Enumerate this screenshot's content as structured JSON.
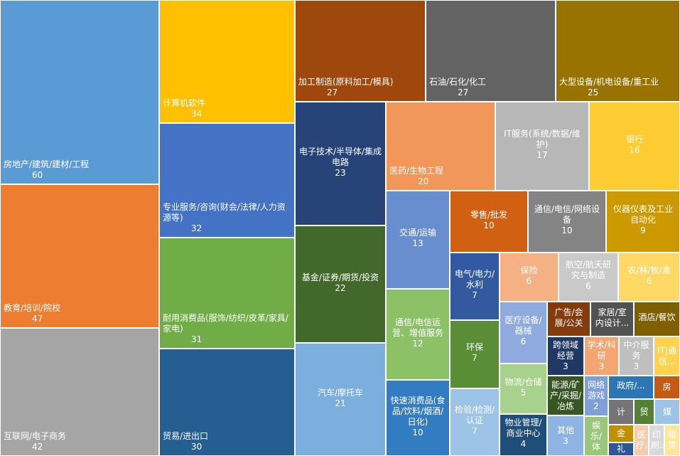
{
  "chart_data": {
    "type": "treemap",
    "title": "",
    "items": [
      {
        "label": "房地产/建筑/建材/工程",
        "value": 60,
        "color": "#5B9BD5"
      },
      {
        "label": "教育/培训/院校",
        "value": 47,
        "color": "#ED7D31"
      },
      {
        "label": "互联网/电子商务",
        "value": 42,
        "color": "#A5A5A5"
      },
      {
        "label": "计算机软件",
        "value": 34,
        "color": "#FFC000"
      },
      {
        "label": "专业服务/咨询(财会/法律/人力资源等)",
        "value": 32,
        "color": "#4472C4"
      },
      {
        "label": "耐用消费品(服饰/纺织/皮革/家具/家电)",
        "value": 31,
        "color": "#70AD47"
      },
      {
        "label": "贸易/进出口",
        "value": 30,
        "color": "#255E91"
      },
      {
        "label": "加工制造(原料加工/模具)",
        "value": 27,
        "color": "#9E480E"
      },
      {
        "label": "石油/石化/化工",
        "value": 27,
        "color": "#636363"
      },
      {
        "label": "大型设备/机电设备/重工业",
        "value": 25,
        "color": "#997300"
      },
      {
        "label": "电子技术/半导体/集成电路",
        "value": 23,
        "color": "#264478"
      },
      {
        "label": "基金/证券/期货/投资",
        "value": 22,
        "color": "#43682B"
      },
      {
        "label": "汽车/摩托车",
        "value": 21,
        "color": "#7CAFDD"
      },
      {
        "label": "医药/生物工程",
        "value": 20,
        "color": "#F1975A"
      },
      {
        "label": "IT服务(系统/数据/维护)",
        "value": 17,
        "color": "#B7B7B7"
      },
      {
        "label": "银行",
        "value": 16,
        "color": "#FFCD33"
      },
      {
        "label": "交通/运输",
        "value": 13,
        "color": "#698ED0"
      },
      {
        "label": "通信/电信运营、增值服务",
        "value": 12,
        "color": "#8CC168"
      },
      {
        "label": "快速消费品(食品/饮料/烟酒/日化)",
        "value": 10,
        "color": "#327DC2"
      },
      {
        "label": "零售/批发",
        "value": 10,
        "color": "#D26012"
      },
      {
        "label": "通信/电信/网络设备",
        "value": 10,
        "color": "#848484"
      },
      {
        "label": "仪器仪表及工业自动化",
        "value": 9,
        "color": "#CC9A00"
      },
      {
        "label": "电气/电力/水利",
        "value": 7,
        "color": "#335AA1"
      },
      {
        "label": "环保",
        "value": 7,
        "color": "#5A8E36"
      },
      {
        "label": "检验/检测/认证",
        "value": 7,
        "color": "#9DC3E6"
      },
      {
        "label": "保险",
        "value": 6,
        "color": "#F4B183"
      },
      {
        "label": "航空/航天研究与制造",
        "value": 6,
        "color": "#C9C9C9"
      },
      {
        "label": "农/林/牧/渔",
        "value": 6,
        "color": "#FFD966"
      },
      {
        "label": "医疗设备/器械",
        "value": 6,
        "color": "#8FAADC"
      },
      {
        "label": "物流/仓储",
        "value": 5,
        "color": "#A9D18E"
      },
      {
        "label": "物业管理/商业中心",
        "value": 4,
        "color": "#1F4E79"
      },
      {
        "label": "广告/会展/公关",
        "value": null,
        "color": "#843C0C"
      },
      {
        "label": "家居/室内设计...",
        "value": null,
        "color": "#525252"
      },
      {
        "label": "酒店/餐饮",
        "value": null,
        "color": "#7F6000"
      },
      {
        "label": "跨领域经营",
        "value": 3,
        "color": "#203864"
      },
      {
        "label": "学术/科研",
        "value": 3,
        "color": "#F4A672"
      },
      {
        "label": "中介服务",
        "value": 3,
        "color": "#BFBFBF"
      },
      {
        "label": "IT|通信...",
        "value": null,
        "color": "#FFD34E"
      },
      {
        "label": "能源/矿产/采掘/冶炼",
        "value": null,
        "color": "#375623"
      },
      {
        "label": "其他",
        "value": 3,
        "color": "#8EB4E3"
      },
      {
        "label": "网络游戏",
        "value": 2,
        "color": "#7F9FD8"
      },
      {
        "label": "政府/...",
        "value": null,
        "color": "#2E75B6"
      },
      {
        "label": "房",
        "value": null,
        "color": "#C55A11"
      },
      {
        "label": "计",
        "value": null,
        "color": "#757575"
      },
      {
        "label": "贸",
        "value": null,
        "color": "#548235"
      },
      {
        "label": "媒",
        "value": null,
        "color": "#9DC3E6"
      },
      {
        "label": "娱乐/体",
        "value": null,
        "color": "#9BC77A"
      },
      {
        "label": "金",
        "value": null,
        "color": "#BF9000"
      },
      {
        "label": "礼",
        "value": null,
        "color": "#2F5597"
      },
      {
        "label": "医疗...",
        "value": null,
        "color": "#F8CBAD"
      },
      {
        "label": "印刷...",
        "value": null,
        "color": "#D9D9D9"
      },
      {
        "label": "租赁",
        "value": null,
        "color": "#FFE699"
      }
    ]
  }
}
